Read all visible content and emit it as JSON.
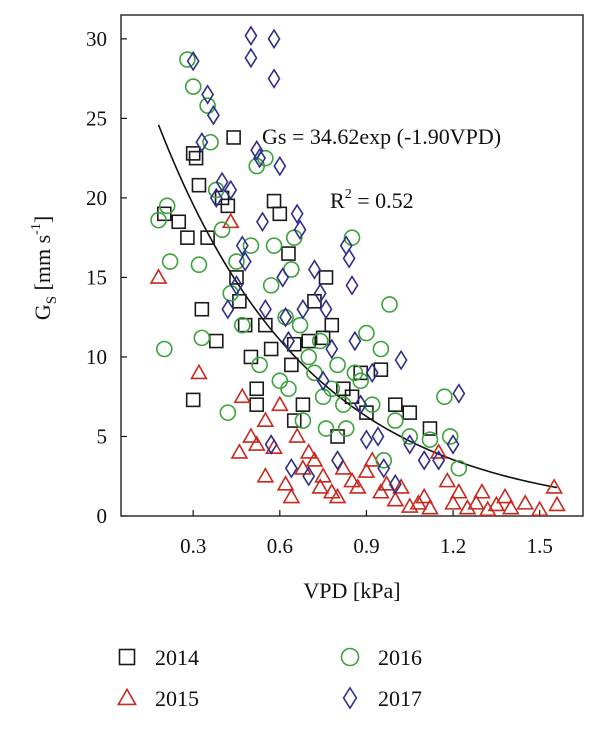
{
  "chart_data": {
    "type": "scatter",
    "xlabel": "VPD [kPa]",
    "ylabel_main": "G",
    "ylabel_sub": "S",
    "ylabel_unit": " [mm s",
    "ylabel_exp": "-1",
    "ylabel_close": "]",
    "xlim": [
      0.05,
      1.65
    ],
    "ylim": [
      0,
      31.5
    ],
    "xticks": [
      0.3,
      0.6,
      0.9,
      1.2,
      1.5
    ],
    "xtick_labels": [
      "0.3",
      "0.6",
      "0.9",
      "1.2",
      "1.5"
    ],
    "yticks": [
      0,
      5,
      10,
      15,
      20,
      25,
      30
    ],
    "ytick_labels": [
      "0",
      "5",
      "10",
      "15",
      "20",
      "25",
      "30"
    ],
    "grid": false,
    "legend_position": "bottom",
    "annotations": {
      "equation": "Gs = 34.62exp (-1.90VPD)",
      "r2_prefix": "R",
      "r2_exp": "2",
      "r2_suffix": " = 0.52"
    },
    "fit_curve": {
      "a": 34.62,
      "b": -1.9,
      "x_range": [
        0.18,
        1.56
      ]
    },
    "series": [
      {
        "name": "2014",
        "marker": "square",
        "color": "#1a1a1a",
        "points": [
          [
            0.2,
            19
          ],
          [
            0.25,
            18.5
          ],
          [
            0.28,
            17.5
          ],
          [
            0.3,
            22.8
          ],
          [
            0.31,
            22.5
          ],
          [
            0.32,
            20.8
          ],
          [
            0.3,
            7.3
          ],
          [
            0.33,
            13
          ],
          [
            0.35,
            17.5
          ],
          [
            0.38,
            11
          ],
          [
            0.4,
            20
          ],
          [
            0.42,
            19.5
          ],
          [
            0.44,
            23.8
          ],
          [
            0.45,
            15
          ],
          [
            0.46,
            13.5
          ],
          [
            0.48,
            12
          ],
          [
            0.5,
            10
          ],
          [
            0.52,
            8
          ],
          [
            0.52,
            7
          ],
          [
            0.55,
            12
          ],
          [
            0.57,
            10.5
          ],
          [
            0.58,
            19.8
          ],
          [
            0.6,
            19
          ],
          [
            0.63,
            16.5
          ],
          [
            0.64,
            9.5
          ],
          [
            0.65,
            10.8
          ],
          [
            0.65,
            6
          ],
          [
            0.68,
            7
          ],
          [
            0.7,
            11
          ],
          [
            0.72,
            13.5
          ],
          [
            0.75,
            11.2
          ],
          [
            0.76,
            15
          ],
          [
            0.78,
            12
          ],
          [
            0.8,
            5
          ],
          [
            0.82,
            8
          ],
          [
            0.85,
            7.5
          ],
          [
            0.88,
            9
          ],
          [
            0.9,
            6.5
          ],
          [
            0.95,
            9.2
          ],
          [
            1.0,
            7
          ],
          [
            1.05,
            6.5
          ],
          [
            1.12,
            5.5
          ]
        ]
      },
      {
        "name": "2015",
        "marker": "triangle",
        "color": "#c8281e",
        "points": [
          [
            0.18,
            15
          ],
          [
            0.32,
            9
          ],
          [
            0.43,
            18.5
          ],
          [
            0.46,
            4
          ],
          [
            0.47,
            7.5
          ],
          [
            0.5,
            5
          ],
          [
            0.52,
            4.5
          ],
          [
            0.55,
            2.5
          ],
          [
            0.55,
            6
          ],
          [
            0.58,
            4.3
          ],
          [
            0.6,
            7
          ],
          [
            0.62,
            2
          ],
          [
            0.64,
            1.2
          ],
          [
            0.66,
            5
          ],
          [
            0.68,
            3
          ],
          [
            0.7,
            4
          ],
          [
            0.72,
            3.5
          ],
          [
            0.74,
            1.8
          ],
          [
            0.75,
            2.5
          ],
          [
            0.78,
            1.5
          ],
          [
            0.8,
            1.2
          ],
          [
            0.82,
            3
          ],
          [
            0.85,
            2.2
          ],
          [
            0.87,
            1.8
          ],
          [
            0.9,
            2.8
          ],
          [
            0.92,
            3.5
          ],
          [
            0.95,
            1.5
          ],
          [
            0.97,
            2
          ],
          [
            1.0,
            1
          ],
          [
            1.02,
            1.8
          ],
          [
            1.05,
            0.6
          ],
          [
            1.08,
            0.8
          ],
          [
            1.1,
            1.2
          ],
          [
            1.12,
            0.5
          ],
          [
            1.15,
            4
          ],
          [
            1.18,
            2.2
          ],
          [
            1.2,
            0.8
          ],
          [
            1.22,
            1.5
          ],
          [
            1.25,
            0.5
          ],
          [
            1.28,
            0.8
          ],
          [
            1.3,
            1.5
          ],
          [
            1.32,
            0.4
          ],
          [
            1.35,
            0.7
          ],
          [
            1.38,
            1.2
          ],
          [
            1.4,
            0.5
          ],
          [
            1.45,
            0.8
          ],
          [
            1.5,
            0.4
          ],
          [
            1.55,
            1.8
          ],
          [
            1.56,
            0.7
          ]
        ]
      },
      {
        "name": "2016",
        "marker": "circle",
        "color": "#3aa33a",
        "points": [
          [
            0.18,
            18.6
          ],
          [
            0.2,
            10.5
          ],
          [
            0.21,
            19.5
          ],
          [
            0.22,
            16
          ],
          [
            0.28,
            28.7
          ],
          [
            0.3,
            27
          ],
          [
            0.32,
            15.8
          ],
          [
            0.33,
            11.2
          ],
          [
            0.35,
            25.8
          ],
          [
            0.36,
            23.5
          ],
          [
            0.38,
            20.5
          ],
          [
            0.4,
            18
          ],
          [
            0.42,
            6.5
          ],
          [
            0.43,
            14
          ],
          [
            0.45,
            16
          ],
          [
            0.47,
            12
          ],
          [
            0.5,
            17
          ],
          [
            0.52,
            22
          ],
          [
            0.53,
            9.5
          ],
          [
            0.55,
            22.5
          ],
          [
            0.57,
            14.5
          ],
          [
            0.58,
            17
          ],
          [
            0.6,
            8.5
          ],
          [
            0.62,
            12.5
          ],
          [
            0.63,
            8
          ],
          [
            0.64,
            15.5
          ],
          [
            0.65,
            17.5
          ],
          [
            0.67,
            12
          ],
          [
            0.68,
            6
          ],
          [
            0.7,
            10
          ],
          [
            0.72,
            9
          ],
          [
            0.74,
            11
          ],
          [
            0.75,
            7.5
          ],
          [
            0.76,
            5.5
          ],
          [
            0.78,
            8
          ],
          [
            0.8,
            9.5
          ],
          [
            0.82,
            7
          ],
          [
            0.83,
            5.5
          ],
          [
            0.85,
            17.5
          ],
          [
            0.86,
            9
          ],
          [
            0.88,
            8.5
          ],
          [
            0.9,
            11.5
          ],
          [
            0.92,
            7
          ],
          [
            0.95,
            10.5
          ],
          [
            0.96,
            3.5
          ],
          [
            0.98,
            13.3
          ],
          [
            1.0,
            6
          ],
          [
            1.05,
            5
          ],
          [
            1.12,
            4.8
          ],
          [
            1.17,
            7.5
          ],
          [
            1.19,
            5
          ],
          [
            1.22,
            3
          ]
        ]
      },
      {
        "name": "2017",
        "marker": "diamond",
        "color": "#2e2e8a",
        "points": [
          [
            0.3,
            28.6
          ],
          [
            0.33,
            23.5
          ],
          [
            0.35,
            26.5
          ],
          [
            0.37,
            25.2
          ],
          [
            0.38,
            20
          ],
          [
            0.4,
            21
          ],
          [
            0.42,
            13
          ],
          [
            0.43,
            20.5
          ],
          [
            0.45,
            14.5
          ],
          [
            0.47,
            17
          ],
          [
            0.48,
            16
          ],
          [
            0.5,
            30.2
          ],
          [
            0.5,
            28.8
          ],
          [
            0.52,
            23
          ],
          [
            0.53,
            22.5
          ],
          [
            0.54,
            18.5
          ],
          [
            0.55,
            13
          ],
          [
            0.57,
            4.5
          ],
          [
            0.58,
            30
          ],
          [
            0.58,
            27.5
          ],
          [
            0.6,
            22
          ],
          [
            0.61,
            15
          ],
          [
            0.62,
            12.5
          ],
          [
            0.63,
            11
          ],
          [
            0.64,
            3
          ],
          [
            0.66,
            19
          ],
          [
            0.67,
            18
          ],
          [
            0.68,
            13
          ],
          [
            0.7,
            2.5
          ],
          [
            0.72,
            15.5
          ],
          [
            0.74,
            14
          ],
          [
            0.75,
            8.5
          ],
          [
            0.76,
            13
          ],
          [
            0.78,
            10.5
          ],
          [
            0.8,
            3.5
          ],
          [
            0.83,
            17
          ],
          [
            0.84,
            16.2
          ],
          [
            0.85,
            14.5
          ],
          [
            0.86,
            11
          ],
          [
            0.88,
            7
          ],
          [
            0.9,
            4.8
          ],
          [
            0.92,
            9
          ],
          [
            0.94,
            5
          ],
          [
            0.96,
            3
          ],
          [
            1.0,
            2
          ],
          [
            1.02,
            9.8
          ],
          [
            1.05,
            4.5
          ],
          [
            1.1,
            3.5
          ],
          [
            1.15,
            3.5
          ],
          [
            1.2,
            4.5
          ],
          [
            1.22,
            7.7
          ]
        ]
      }
    ]
  }
}
